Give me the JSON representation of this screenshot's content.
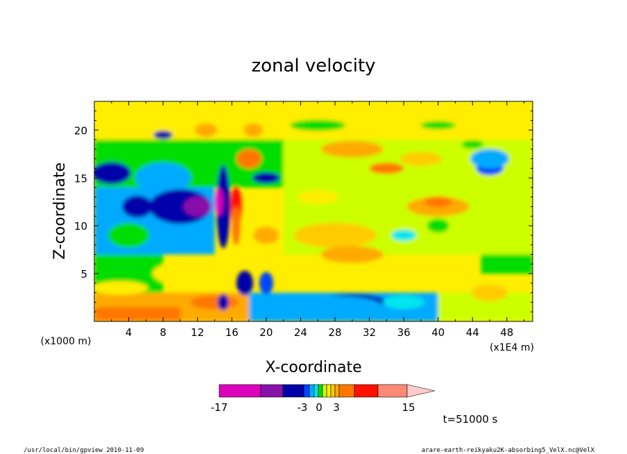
{
  "chart_data": {
    "type": "heatmap",
    "title": "zonal velocity",
    "xlabel": "X-coordinate",
    "ylabel": "Z-coordinate",
    "x_unit_left": "(x1000 m)",
    "x_unit_right": "(x1E4 m)",
    "xlim": [
      0,
      51
    ],
    "ylim": [
      0,
      23
    ],
    "x_ticks": [
      "4",
      "8",
      "12",
      "16",
      "20",
      "24",
      "28",
      "32",
      "36",
      "40",
      "44",
      "48"
    ],
    "y_ticks": [
      "5",
      "10",
      "15",
      "20"
    ],
    "colorbar": {
      "min_label": "-17",
      "max_label": "15",
      "mid_labels": [
        "-3",
        "0",
        "3"
      ],
      "colors": [
        "#dd00bb",
        "#8811aa",
        "#0000aa",
        "#0044ff",
        "#00aaff",
        "#00e5ee",
        "#00dd00",
        "#ccff00",
        "#ffee00",
        "#ffcc00",
        "#ffaa00",
        "#ff7700",
        "#ff1100",
        "#ff8877",
        "#ffcccc"
      ]
    },
    "annotation_time": "t=51000 s",
    "footer_left": "/usr/local/bin/gpview  2010-11-09",
    "footer_right": "arare-earth-reikyaku2K-absorbing5_VelX.nc@VelX"
  }
}
